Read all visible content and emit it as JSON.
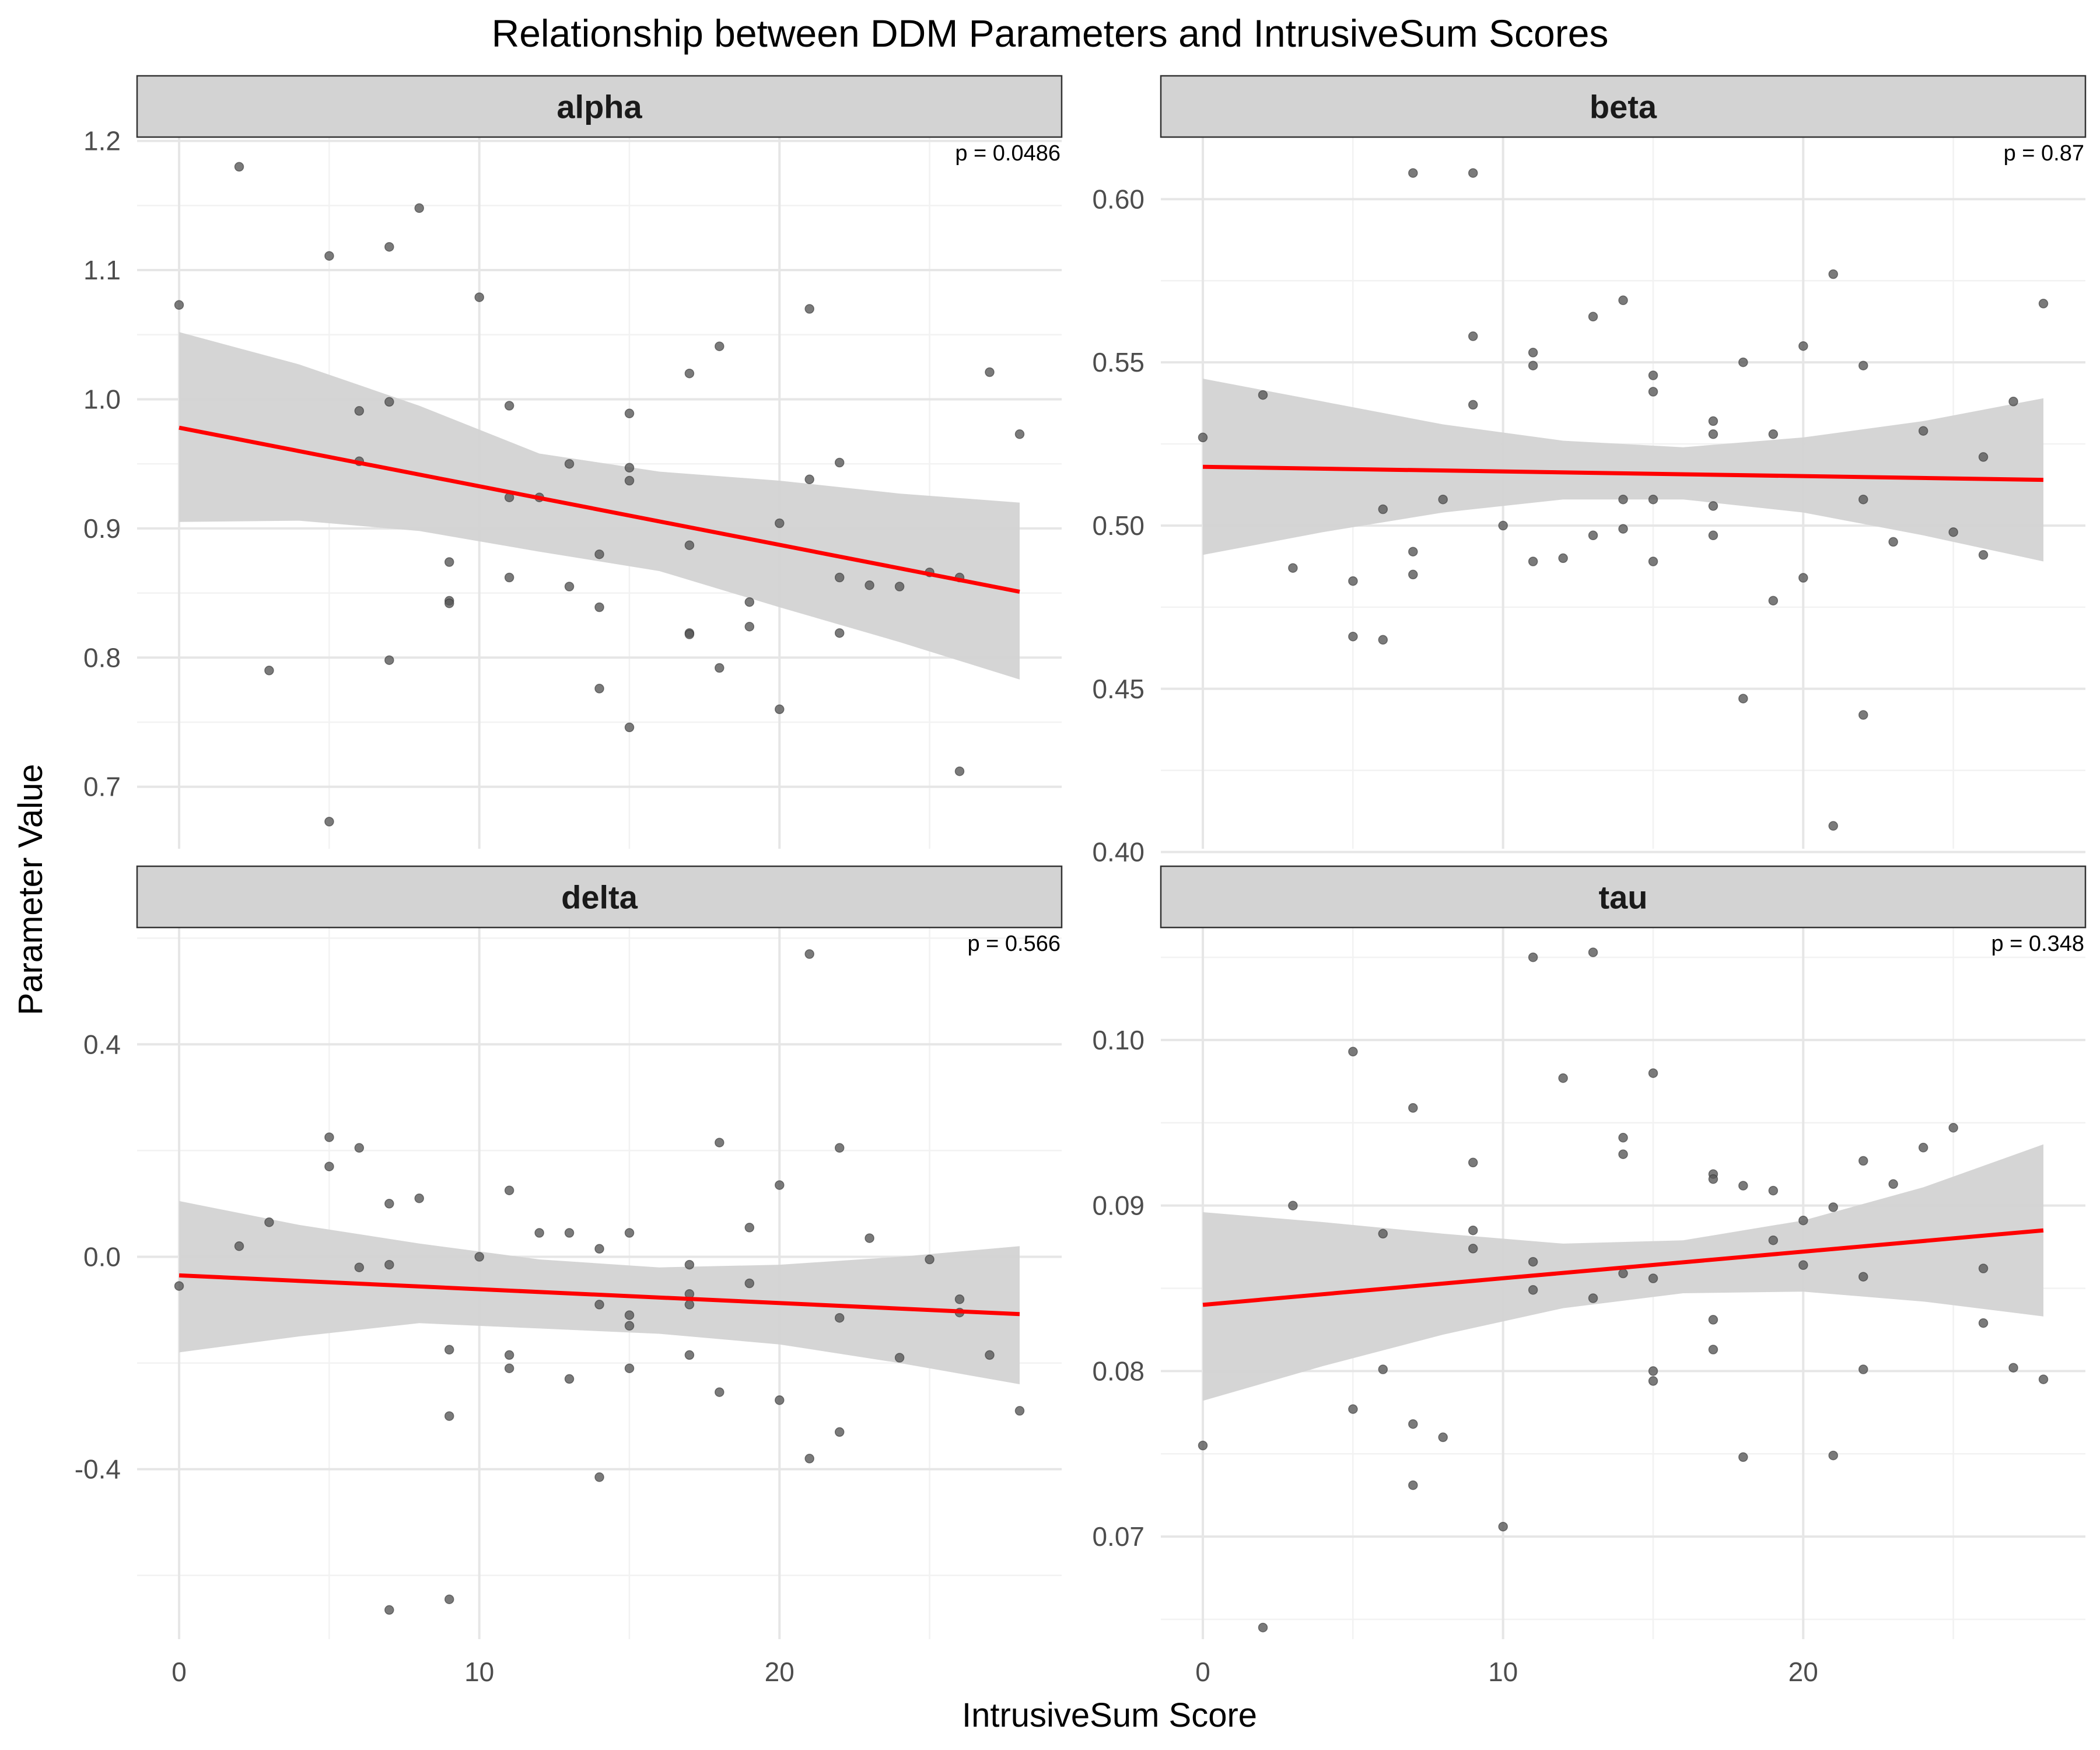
{
  "chart_data": {
    "type": "scatter",
    "title": "Relationship between DDM Parameters and IntrusiveSum Scores",
    "xlabel": "IntrusiveSum Score",
    "ylabel": "Parameter Value",
    "xlim": [
      -1.4,
      29.4
    ],
    "x_ticks": [
      0,
      10,
      20
    ],
    "grid": true,
    "colors": {
      "points": "#595959",
      "fit_line": "#ff0000",
      "ribbon": "#d3d3d3",
      "strip_fill": "#d3d3d3"
    },
    "facets": [
      {
        "name": "alpha",
        "p_label": "p = 0.0486",
        "ylim": [
          0.652,
          1.203
        ],
        "y_ticks": [
          0.7,
          0.8,
          0.9,
          1.0,
          1.1,
          1.2
        ],
        "y_tick_labels": [
          "0.7",
          "0.8",
          "0.9",
          "1.0",
          "1.1",
          "1.2"
        ],
        "fit": {
          "x": [
            0,
            28
          ],
          "y": [
            0.978,
            0.851
          ]
        },
        "band": {
          "x": [
            0,
            4,
            8,
            12,
            16,
            20,
            24,
            28
          ],
          "lower": [
            0.905,
            0.906,
            0.898,
            0.882,
            0.867,
            0.839,
            0.812,
            0.783
          ],
          "upper": [
            1.052,
            1.027,
            0.995,
            0.958,
            0.944,
            0.937,
            0.927,
            0.92
          ]
        },
        "points": [
          [
            0,
            1.073
          ],
          [
            2,
            1.18
          ],
          [
            3,
            0.79
          ],
          [
            5,
            1.111
          ],
          [
            5,
            0.673
          ],
          [
            6,
            0.991
          ],
          [
            6,
            0.952
          ],
          [
            7,
            1.118
          ],
          [
            7,
            0.998
          ],
          [
            7,
            0.798
          ],
          [
            8,
            1.148
          ],
          [
            9,
            0.874
          ],
          [
            9,
            0.844
          ],
          [
            9,
            0.842
          ],
          [
            10,
            1.079
          ],
          [
            11,
            0.995
          ],
          [
            11,
            0.924
          ],
          [
            11,
            0.862
          ],
          [
            12,
            0.924
          ],
          [
            13,
            0.95
          ],
          [
            13,
            0.855
          ],
          [
            14,
            0.88
          ],
          [
            14,
            0.839
          ],
          [
            14,
            0.776
          ],
          [
            15,
            0.989
          ],
          [
            15,
            0.947
          ],
          [
            15,
            0.937
          ],
          [
            15,
            0.746
          ],
          [
            17,
            1.02
          ],
          [
            17,
            0.887
          ],
          [
            17,
            0.819
          ],
          [
            17,
            0.818
          ],
          [
            18,
            1.041
          ],
          [
            18,
            0.792
          ],
          [
            19,
            0.843
          ],
          [
            19,
            0.824
          ],
          [
            20,
            0.904
          ],
          [
            20,
            0.76
          ],
          [
            21,
            1.07
          ],
          [
            21,
            0.938
          ],
          [
            22,
            0.951
          ],
          [
            22,
            0.862
          ],
          [
            22,
            0.819
          ],
          [
            23,
            0.856
          ],
          [
            24,
            0.855
          ],
          [
            25,
            0.866
          ],
          [
            26,
            0.862
          ],
          [
            26,
            0.712
          ],
          [
            27,
            1.021
          ],
          [
            28,
            0.973
          ]
        ]
      },
      {
        "name": "beta",
        "p_label": "p = 0.87",
        "ylim": [
          0.401,
          0.619
        ],
        "y_ticks": [
          0.4,
          0.45,
          0.5,
          0.55,
          0.6
        ],
        "y_tick_labels": [
          "0.40",
          "0.45",
          "0.50",
          "0.55",
          "0.60"
        ],
        "fit": {
          "x": [
            0,
            28
          ],
          "y": [
            0.518,
            0.514
          ]
        },
        "band": {
          "x": [
            0,
            4,
            8,
            12,
            16,
            20,
            24,
            28
          ],
          "lower": [
            0.491,
            0.498,
            0.504,
            0.508,
            0.508,
            0.504,
            0.497,
            0.489
          ],
          "upper": [
            0.545,
            0.538,
            0.531,
            0.526,
            0.524,
            0.527,
            0.532,
            0.539
          ]
        },
        "points": [
          [
            0,
            0.527
          ],
          [
            2,
            0.54
          ],
          [
            3,
            0.487
          ],
          [
            5,
            0.483
          ],
          [
            5,
            0.466
          ],
          [
            6,
            0.505
          ],
          [
            6,
            0.465
          ],
          [
            7,
            0.608
          ],
          [
            7,
            0.492
          ],
          [
            7,
            0.485
          ],
          [
            8,
            0.508
          ],
          [
            9,
            0.608
          ],
          [
            9,
            0.558
          ],
          [
            9,
            0.537
          ],
          [
            10,
            0.5
          ],
          [
            11,
            0.553
          ],
          [
            11,
            0.549
          ],
          [
            11,
            0.489
          ],
          [
            12,
            0.49
          ],
          [
            13,
            0.564
          ],
          [
            13,
            0.497
          ],
          [
            14,
            0.569
          ],
          [
            14,
            0.508
          ],
          [
            14,
            0.499
          ],
          [
            15,
            0.546
          ],
          [
            15,
            0.541
          ],
          [
            15,
            0.508
          ],
          [
            15,
            0.489
          ],
          [
            17,
            0.532
          ],
          [
            17,
            0.528
          ],
          [
            17,
            0.506
          ],
          [
            17,
            0.497
          ],
          [
            18,
            0.55
          ],
          [
            18,
            0.447
          ],
          [
            19,
            0.528
          ],
          [
            19,
            0.477
          ],
          [
            20,
            0.555
          ],
          [
            20,
            0.484
          ],
          [
            21,
            0.577
          ],
          [
            21,
            0.408
          ],
          [
            22,
            0.549
          ],
          [
            22,
            0.508
          ],
          [
            22,
            0.442
          ],
          [
            23,
            0.495
          ],
          [
            24,
            0.529
          ],
          [
            25,
            0.498
          ],
          [
            26,
            0.521
          ],
          [
            26,
            0.491
          ],
          [
            27,
            0.538
          ],
          [
            28,
            0.568
          ]
        ]
      },
      {
        "name": "delta",
        "p_label": "p = 0.566",
        "ylim": [
          -0.72,
          0.62
        ],
        "y_ticks": [
          -0.4,
          0.0,
          0.4
        ],
        "y_tick_labels": [
          "-0.4",
          "0.0",
          "0.4"
        ],
        "fit": {
          "x": [
            0,
            28
          ],
          "y": [
            -0.035,
            -0.108
          ]
        },
        "band": {
          "x": [
            0,
            4,
            8,
            12,
            16,
            20,
            24,
            28
          ],
          "lower": [
            -0.18,
            -0.15,
            -0.125,
            -0.135,
            -0.145,
            -0.165,
            -0.2,
            -0.24
          ],
          "upper": [
            0.105,
            0.06,
            0.025,
            -0.005,
            -0.02,
            -0.015,
            0.0,
            0.02
          ]
        },
        "points": [
          [
            0,
            -0.055
          ],
          [
            2,
            0.02
          ],
          [
            3,
            0.065
          ],
          [
            5,
            0.225
          ],
          [
            5,
            0.17
          ],
          [
            6,
            0.205
          ],
          [
            6,
            -0.02
          ],
          [
            7,
            0.1
          ],
          [
            7,
            -0.015
          ],
          [
            7,
            -0.665
          ],
          [
            8,
            0.11
          ],
          [
            9,
            -0.175
          ],
          [
            9,
            -0.3
          ],
          [
            9,
            -0.645
          ],
          [
            10,
            0.0
          ],
          [
            11,
            0.125
          ],
          [
            11,
            -0.185
          ],
          [
            11,
            -0.21
          ],
          [
            12,
            0.045
          ],
          [
            13,
            0.045
          ],
          [
            13,
            -0.23
          ],
          [
            14,
            0.015
          ],
          [
            14,
            -0.09
          ],
          [
            14,
            -0.415
          ],
          [
            15,
            0.045
          ],
          [
            15,
            -0.11
          ],
          [
            15,
            -0.13
          ],
          [
            15,
            -0.21
          ],
          [
            17,
            -0.015
          ],
          [
            17,
            -0.07
          ],
          [
            17,
            -0.09
          ],
          [
            17,
            -0.185
          ],
          [
            18,
            0.215
          ],
          [
            18,
            -0.255
          ],
          [
            19,
            0.055
          ],
          [
            19,
            -0.05
          ],
          [
            20,
            0.135
          ],
          [
            20,
            -0.27
          ],
          [
            21,
            0.57
          ],
          [
            21,
            -0.38
          ],
          [
            22,
            0.205
          ],
          [
            22,
            -0.115
          ],
          [
            22,
            -0.33
          ],
          [
            23,
            0.035
          ],
          [
            24,
            -0.19
          ],
          [
            25,
            -0.005
          ],
          [
            26,
            -0.08
          ],
          [
            26,
            -0.105
          ],
          [
            27,
            -0.185
          ],
          [
            28,
            -0.29
          ]
        ]
      },
      {
        "name": "tau",
        "p_label": "p = 0.348",
        "ylim": [
          0.0638,
          0.1068
        ],
        "y_ticks": [
          0.07,
          0.08,
          0.09,
          0.1
        ],
        "y_tick_labels": [
          "0.07",
          "0.08",
          "0.09",
          "0.10"
        ],
        "fit": {
          "x": [
            0,
            28
          ],
          "y": [
            0.084,
            0.0885
          ]
        },
        "band": {
          "x": [
            0,
            4,
            8,
            12,
            16,
            20,
            24,
            28
          ],
          "lower": [
            0.0782,
            0.0803,
            0.0822,
            0.0838,
            0.0847,
            0.0848,
            0.0842,
            0.0833
          ],
          "upper": [
            0.0896,
            0.089,
            0.0883,
            0.0877,
            0.0879,
            0.0891,
            0.0911,
            0.0937
          ]
        },
        "points": [
          [
            0,
            0.0755
          ],
          [
            2,
            0.0645
          ],
          [
            3,
            0.09
          ],
          [
            5,
            0.0993
          ],
          [
            5,
            0.0777
          ],
          [
            6,
            0.0883
          ],
          [
            6,
            0.0801
          ],
          [
            7,
            0.0959
          ],
          [
            7,
            0.0768
          ],
          [
            7,
            0.0731
          ],
          [
            8,
            0.076
          ],
          [
            9,
            0.0926
          ],
          [
            9,
            0.0885
          ],
          [
            9,
            0.0874
          ],
          [
            10,
            0.0706
          ],
          [
            11,
            0.105
          ],
          [
            11,
            0.0866
          ],
          [
            11,
            0.0849
          ],
          [
            12,
            0.0977
          ],
          [
            13,
            0.1053
          ],
          [
            13,
            0.0844
          ],
          [
            14,
            0.0941
          ],
          [
            14,
            0.0931
          ],
          [
            14,
            0.0859
          ],
          [
            15,
            0.098
          ],
          [
            15,
            0.0856
          ],
          [
            15,
            0.08
          ],
          [
            15,
            0.0794
          ],
          [
            17,
            0.0919
          ],
          [
            17,
            0.0916
          ],
          [
            17,
            0.0831
          ],
          [
            17,
            0.0813
          ],
          [
            18,
            0.0912
          ],
          [
            18,
            0.0748
          ],
          [
            19,
            0.0909
          ],
          [
            19,
            0.0879
          ],
          [
            20,
            0.0891
          ],
          [
            20,
            0.0864
          ],
          [
            21,
            0.0899
          ],
          [
            21,
            0.0749
          ],
          [
            22,
            0.0927
          ],
          [
            22,
            0.0857
          ],
          [
            22,
            0.0801
          ],
          [
            23,
            0.0913
          ],
          [
            24,
            0.0935
          ],
          [
            25,
            0.0947
          ],
          [
            26,
            0.0862
          ],
          [
            26,
            0.0829
          ],
          [
            27,
            0.0802
          ],
          [
            28,
            0.0795
          ]
        ]
      }
    ]
  }
}
